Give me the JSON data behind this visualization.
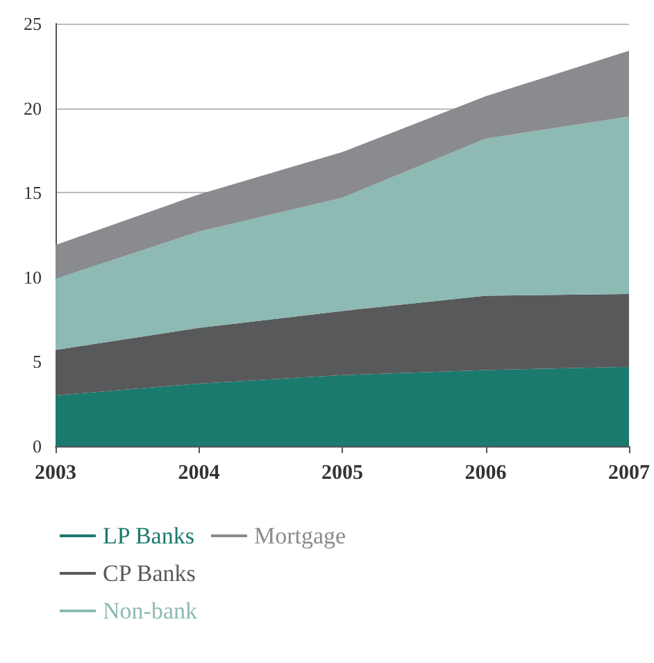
{
  "chart_data": {
    "type": "area",
    "stacked": true,
    "categories": [
      "2003",
      "2004",
      "2005",
      "2006",
      "2007"
    ],
    "series": [
      {
        "name": "LP Banks",
        "color": "#1b7a6e",
        "values": [
          3.0,
          3.7,
          4.2,
          4.5,
          4.7
        ]
      },
      {
        "name": "CP Banks",
        "color": "#58595b",
        "values": [
          2.7,
          3.3,
          3.8,
          4.4,
          4.3
        ]
      },
      {
        "name": "Non-bank",
        "color": "#8dbab3",
        "values": [
          4.2,
          5.7,
          6.7,
          9.3,
          10.5
        ]
      },
      {
        "name": "Mortgage",
        "color": "#8a8b8f",
        "values": [
          2.0,
          2.2,
          2.7,
          2.5,
          3.9
        ]
      }
    ],
    "ylim": [
      0,
      25
    ],
    "yticks": [
      0,
      5,
      10,
      15,
      20,
      25
    ],
    "grid": "y",
    "legend": "bottom"
  }
}
